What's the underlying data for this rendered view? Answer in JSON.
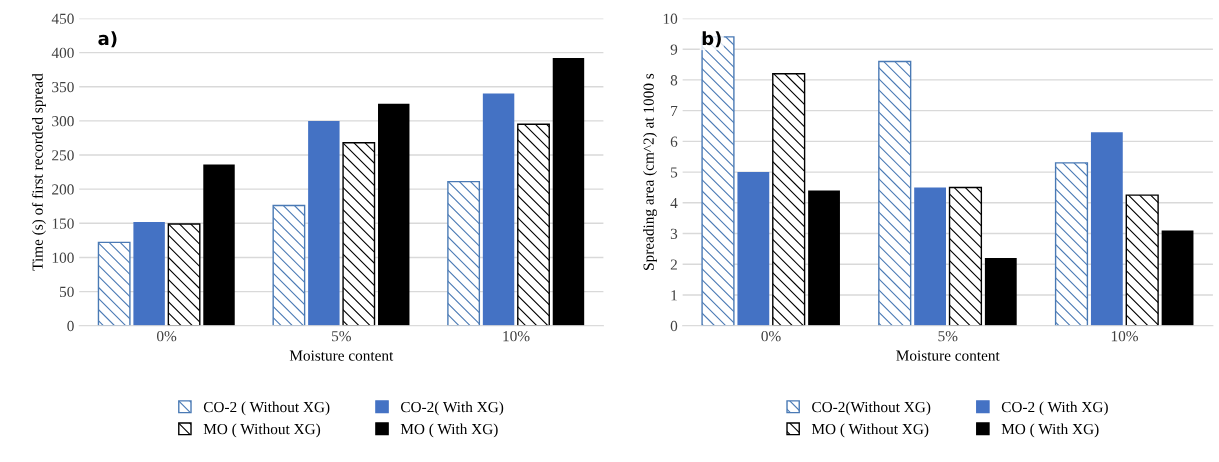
{
  "chart_data": [
    {
      "type": "bar",
      "categories": [
        "0%",
        "5%",
        "10%"
      ],
      "xlabel": "Moisture content",
      "ylabel": "Time (s) of first recorded spread",
      "series": [
        {
          "name": "CO-2 ( Without XG)",
          "color": "#4a7ab5",
          "values": [
            122,
            176,
            211
          ]
        },
        {
          "name": "CO-2( With XG)",
          "color": "#4472c4",
          "values": [
            152,
            300,
            340
          ]
        },
        {
          "name": "MO ( Without XG)",
          "color": "#000000",
          "values": [
            149,
            268,
            295
          ]
        },
        {
          "name": "MO ( With XG)",
          "color": "#000000",
          "values": [
            236,
            325,
            392
          ]
        }
      ],
      "ylim": [
        0,
        450
      ],
      "yticks": [
        0,
        50,
        100,
        150,
        200,
        250,
        300,
        350,
        400,
        450
      ],
      "grid": "y",
      "legend": "bottom",
      "annotations": [
        "a)"
      ]
    },
    {
      "type": "bar",
      "categories": [
        "0%",
        "5%",
        "10%"
      ],
      "xlabel": "Moisture content",
      "ylabel": "Spreading area (cm^2) at 1000 s",
      "series": [
        {
          "name": "CO-2(Without XG)",
          "color": "#4a7ab5",
          "values": [
            9.4,
            8.6,
            5.3
          ]
        },
        {
          "name": "CO-2 ( With XG)",
          "color": "#4472c4",
          "values": [
            5.0,
            4.5,
            6.3
          ]
        },
        {
          "name": "MO ( Without XG)",
          "color": "#000000",
          "values": [
            8.2,
            4.5,
            4.25
          ]
        },
        {
          "name": "MO ( With XG)",
          "color": "#000000",
          "values": [
            4.4,
            2.2,
            3.1
          ]
        }
      ],
      "ylim": [
        0,
        10
      ],
      "yticks": [
        0,
        1,
        2,
        3,
        4,
        5,
        6,
        7,
        8,
        9,
        10
      ],
      "grid": "y",
      "legend": "bottom",
      "annotations": [
        "b)"
      ]
    }
  ]
}
